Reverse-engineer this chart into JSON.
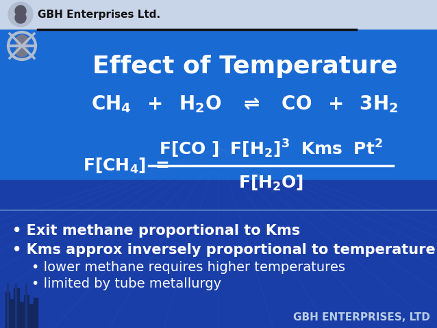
{
  "bg_color_top": "#1a6ad4",
  "bg_color_bottom": "#1a3ea8",
  "header_bg": "#c8d4e8",
  "header_text": "GBH Enterprises Ltd.",
  "header_sep_color": "#111111",
  "title": "Effect of Temperature",
  "title_color": "#ffffff",
  "title_fontsize": 26,
  "reaction_color": "#ffffff",
  "reaction_fontsize": 20,
  "formula_color": "#ffffff",
  "formula_fontsize": 18,
  "frac_line_color": "#ffffff",
  "bullet_color": "#ffffff",
  "bullet1_fontsize": 15,
  "bullet2_fontsize": 15,
  "bullet3_fontsize": 14,
  "bullet4_fontsize": 14,
  "footer_text": "GBH ENTERPRISES, LTD",
  "footer_color": "#b8cce4",
  "footer_fontsize": 11,
  "divider_color": "#4a7abf",
  "grid_line_color": "#3a6ab8",
  "logo_bg": "#c8d4e8"
}
